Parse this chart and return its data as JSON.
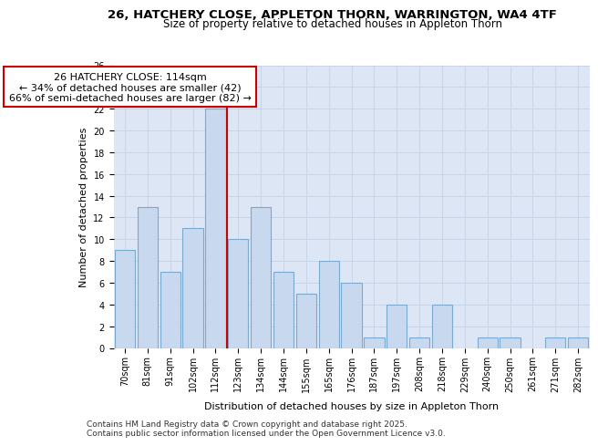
{
  "title": "26, HATCHERY CLOSE, APPLETON THORN, WARRINGTON, WA4 4TF",
  "subtitle": "Size of property relative to detached houses in Appleton Thorn",
  "xlabel": "Distribution of detached houses by size in Appleton Thorn",
  "ylabel": "Number of detached properties",
  "categories": [
    "70sqm",
    "81sqm",
    "91sqm",
    "102sqm",
    "112sqm",
    "123sqm",
    "134sqm",
    "144sqm",
    "155sqm",
    "165sqm",
    "176sqm",
    "187sqm",
    "197sqm",
    "208sqm",
    "218sqm",
    "229sqm",
    "240sqm",
    "250sqm",
    "261sqm",
    "271sqm",
    "282sqm"
  ],
  "values": [
    9,
    13,
    7,
    11,
    22,
    10,
    13,
    7,
    5,
    8,
    6,
    1,
    4,
    1,
    4,
    0,
    1,
    1,
    0,
    1,
    1
  ],
  "bar_color": "#c8d8ee",
  "bar_edge_color": "#7aaad0",
  "vline_x": 4.5,
  "vline_color": "#cc0000",
  "annotation_text": "26 HATCHERY CLOSE: 114sqm\n← 34% of detached houses are smaller (42)\n66% of semi-detached houses are larger (82) →",
  "annotation_box_color": "#ffffff",
  "annotation_box_edge": "#cc0000",
  "ylim": [
    0,
    26
  ],
  "yticks": [
    0,
    2,
    4,
    6,
    8,
    10,
    12,
    14,
    16,
    18,
    20,
    22,
    24,
    26
  ],
  "grid_color": "#c8d4e8",
  "bg_color": "#dde6f4",
  "footer1": "Contains HM Land Registry data © Crown copyright and database right 2025.",
  "footer2": "Contains public sector information licensed under the Open Government Licence v3.0.",
  "title_fontsize": 9.5,
  "subtitle_fontsize": 8.5,
  "axis_label_fontsize": 8,
  "tick_fontsize": 7,
  "annotation_fontsize": 8,
  "footer_fontsize": 6.5
}
